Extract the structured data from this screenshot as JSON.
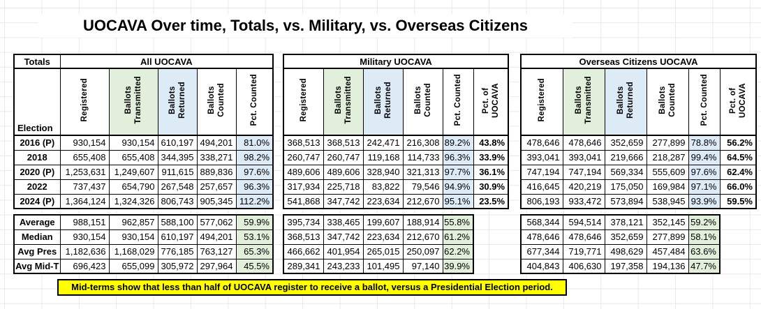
{
  "title": "UOCAVA Over time, Totals, vs. Military, vs. Overseas Citizens",
  "note": "Mid-terms show that less than half of UOCAVA register to receive a ballot, versus a Presidential Election period.",
  "colors": {
    "header_green": "#e2efda",
    "header_blue": "#ddebf7",
    "note_yellow": "#ffff00"
  },
  "sections": [
    {
      "id": "all-uocava",
      "totals_label": "Totals",
      "election_label": "Election",
      "banner": "All UOCAVA",
      "columns": [
        "Registered",
        "Ballots\nTransmitted",
        "Ballots\nReturned",
        "Ballots\nCounted",
        "Pct. Counted"
      ],
      "column_fills": [
        "white",
        "green",
        "blue",
        "white",
        "white"
      ],
      "rows": [
        {
          "label": "2016 (P)",
          "values": [
            "930,154",
            "930,154",
            "610,197",
            "494,201",
            "81.0%"
          ]
        },
        {
          "label": "2018",
          "values": [
            "655,408",
            "655,408",
            "344,395",
            "338,271",
            "98.2%"
          ]
        },
        {
          "label": "2020 (P)",
          "values": [
            "1,253,631",
            "1,249,607",
            "911,615",
            "889,836",
            "97.6%"
          ]
        },
        {
          "label": "2022",
          "values": [
            "737,437",
            "654,790",
            "267,548",
            "257,657",
            "96.3%"
          ]
        },
        {
          "label": "2024 (P)",
          "values": [
            "1,364,124",
            "1,324,326",
            "806,743",
            "905,345",
            "112.2%"
          ]
        }
      ],
      "summary": [
        {
          "label": "Average",
          "values": [
            "988,151",
            "962,857",
            "588,100",
            "577,062",
            "59.9%"
          ]
        },
        {
          "label": "Median",
          "values": [
            "930,154",
            "930,154",
            "610,197",
            "494,201",
            "53.1%"
          ]
        },
        {
          "label": "Avg Pres",
          "values": [
            "1,182,636",
            "1,168,029",
            "776,185",
            "763,127",
            "65.3%"
          ]
        },
        {
          "label": "Avg Mid-T",
          "values": [
            "696,423",
            "655,099",
            "305,972",
            "297,964",
            "45.5%"
          ]
        }
      ]
    },
    {
      "id": "military-uocava",
      "banner": "Military UOCAVA",
      "columns": [
        "Registered",
        "Ballots\nTransmitted",
        "Ballots\nReturned",
        "Ballots\nCounted",
        "Pct. Counted",
        "Pct. of\nUOCAVA"
      ],
      "column_fills": [
        "white",
        "green",
        "blue",
        "white",
        "white",
        "white"
      ],
      "rows": [
        {
          "values": [
            "368,513",
            "368,513",
            "242,471",
            "216,308",
            "89.2%",
            "43.8%"
          ]
        },
        {
          "values": [
            "260,747",
            "260,747",
            "119,168",
            "114,733",
            "96.3%",
            "33.9%"
          ]
        },
        {
          "values": [
            "489,606",
            "489,606",
            "328,940",
            "321,313",
            "97.7%",
            "36.1%"
          ]
        },
        {
          "values": [
            "317,934",
            "225,718",
            "83,822",
            "79,546",
            "94.9%",
            "30.9%"
          ]
        },
        {
          "values": [
            "541,868",
            "347,742",
            "223,634",
            "212,670",
            "95.1%",
            "23.5%"
          ]
        }
      ],
      "summary": [
        {
          "values": [
            "395,734",
            "338,465",
            "199,607",
            "188,914",
            "55.8%"
          ]
        },
        {
          "values": [
            "368,513",
            "347,742",
            "223,634",
            "212,670",
            "61.2%"
          ]
        },
        {
          "values": [
            "466,662",
            "401,954",
            "265,015",
            "250,097",
            "62.2%"
          ]
        },
        {
          "values": [
            "289,341",
            "243,233",
            "101,495",
            "97,140",
            "39.9%"
          ]
        }
      ]
    },
    {
      "id": "overseas-citizens-uocava",
      "banner": "Overseas Citizens UOCAVA",
      "columns": [
        "Registered",
        "Ballots\nTransmitted",
        "Ballots\nReturned",
        "Ballots\nCounted",
        "Pct. Counted",
        "Pct. of\nUOCAVA"
      ],
      "column_fills": [
        "white",
        "green",
        "blue",
        "white",
        "white",
        "white"
      ],
      "rows": [
        {
          "values": [
            "478,646",
            "478,646",
            "352,659",
            "277,899",
            "78.8%",
            "56.2%"
          ]
        },
        {
          "values": [
            "393,041",
            "393,041",
            "219,666",
            "218,287",
            "99.4%",
            "64.5%"
          ]
        },
        {
          "values": [
            "747,194",
            "747,194",
            "569,334",
            "555,609",
            "97.6%",
            "62.4%"
          ]
        },
        {
          "values": [
            "416,645",
            "420,219",
            "175,050",
            "169,984",
            "97.1%",
            "66.0%"
          ]
        },
        {
          "values": [
            "806,193",
            "933,472",
            "573,894",
            "538,945",
            "93.9%",
            "59.5%"
          ]
        }
      ],
      "summary": [
        {
          "values": [
            "568,344",
            "594,514",
            "378,121",
            "352,145",
            "59.2%"
          ]
        },
        {
          "values": [
            "478,646",
            "478,646",
            "352,659",
            "277,899",
            "58.1%"
          ]
        },
        {
          "values": [
            "677,344",
            "719,771",
            "498,629",
            "457,484",
            "63.6%"
          ]
        },
        {
          "values": [
            "404,843",
            "406,630",
            "197,358",
            "194,136",
            "47.7%"
          ]
        }
      ]
    }
  ]
}
